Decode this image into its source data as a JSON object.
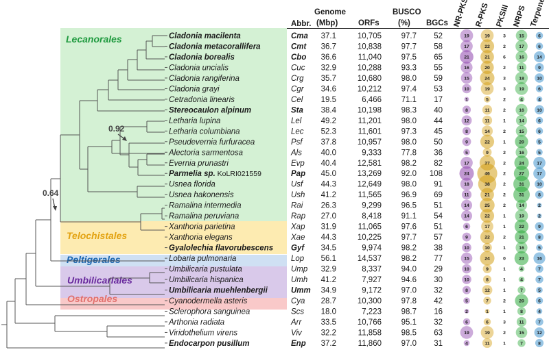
{
  "headers": {
    "abbr": "Abbr.",
    "genome_1": "Genome",
    "genome_2": "(Mbp)",
    "orfs": "ORFs",
    "busco_1": "BUSCO",
    "busco_2": "(%)",
    "bgcs": "BGCs",
    "bgc_types": [
      "NR-PKS",
      "R-PKS",
      "PKSIII",
      "NRPS",
      "Terpene"
    ]
  },
  "colors": {
    "nr_pks": "#8e44ad",
    "r_pks": "#d4a017",
    "pksiii": "#e8731a",
    "nrps": "#2eaa3c",
    "terpene": "#1a7fc4",
    "lecanorales_bg": "#cdeecd",
    "telochistales_bg": "#fde9a8",
    "peltigerales_bg": "#cfe0f3",
    "umbilicariales_bg": "#d9c9ea",
    "ostropales_bg": "#f9c9c9"
  },
  "orders": [
    {
      "name": "Lecanorales",
      "color": "#1f9a3f"
    },
    {
      "name": "Telochistales",
      "color": "#e3a210"
    },
    {
      "name": "Peltigerales",
      "color": "#1a66b0"
    },
    {
      "name": "Umbilicariales",
      "color": "#6a2c9e"
    },
    {
      "name": "Ostropales",
      "color": "#e0706e"
    }
  ],
  "supports": [
    "0.92",
    "0.64"
  ],
  "species": [
    {
      "name": "Cladonia macilenta",
      "bold": true,
      "abbr": "Cma",
      "genome": "37.1",
      "orfs": "10,705",
      "busco": "97.7",
      "bgcs": "52",
      "nr": "19",
      "r": "19",
      "p3": "3",
      "nrps": "15",
      "ter": "6"
    },
    {
      "name": "Cladonia metacorallifera",
      "bold": true,
      "abbr": "Cmt",
      "genome": "36.7",
      "orfs": "10,838",
      "busco": "97.7",
      "bgcs": "58",
      "nr": "17",
      "r": "22",
      "p3": "2",
      "nrps": "17",
      "ter": "6"
    },
    {
      "name": "Cladonia borealis",
      "bold": true,
      "abbr": "Cbo",
      "genome": "36.6",
      "orfs": "11,040",
      "busco": "97.5",
      "bgcs": "65",
      "nr": "21",
      "r": "21",
      "p3": "6",
      "nrps": "16",
      "ter": "14"
    },
    {
      "name": "Cladonia uncialis",
      "bold": false,
      "abbr": "Cuc",
      "genome": "32.9",
      "orfs": "10,288",
      "busco": "93.3",
      "bgcs": "55",
      "nr": "16",
      "r": "20",
      "p3": "2",
      "nrps": "11",
      "ter": "9"
    },
    {
      "name": "Cladonia rangiferina",
      "bold": false,
      "abbr": "Crg",
      "genome": "35.7",
      "orfs": "10,680",
      "busco": "98.0",
      "bgcs": "59",
      "nr": "15",
      "r": "24",
      "p3": "3",
      "nrps": "18",
      "ter": "10"
    },
    {
      "name": "Cladonia grayi",
      "bold": false,
      "abbr": "Cgr",
      "genome": "34.6",
      "orfs": "10,212",
      "busco": "97.4",
      "bgcs": "53",
      "nr": "10",
      "r": "19",
      "p3": "3",
      "nrps": "19",
      "ter": "6"
    },
    {
      "name": "Cetradonia linearis",
      "bold": false,
      "abbr": "Cel",
      "genome": "19.5",
      "orfs": "6,466",
      "busco": "71.1",
      "bgcs": "17",
      "nr": "1",
      "r": "5",
      "p3": "2",
      "nrps": "4",
      "ter": "4"
    },
    {
      "name": "Stereocaulon alpinum",
      "bold": true,
      "abbr": "Sta",
      "genome": "38.4",
      "orfs": "10,198",
      "busco": "98.3",
      "bgcs": "40",
      "nr": "8",
      "r": "11",
      "p3": "2",
      "nrps": "16",
      "ter": "10"
    },
    {
      "name": "Letharia lupina",
      "bold": false,
      "abbr": "Lel",
      "genome": "49.2",
      "orfs": "11,201",
      "busco": "98.0",
      "bgcs": "44",
      "nr": "12",
      "r": "11",
      "p3": "1",
      "nrps": "14",
      "ter": "6"
    },
    {
      "name": "Letharia columbiana",
      "bold": false,
      "abbr": "Lec",
      "genome": "52.3",
      "orfs": "11,601",
      "busco": "97.3",
      "bgcs": "45",
      "nr": "8",
      "r": "14",
      "p3": "2",
      "nrps": "15",
      "ter": "6"
    },
    {
      "name": "Pseudevernia furfuracea",
      "bold": false,
      "abbr": "Psf",
      "genome": "37.8",
      "orfs": "10,957",
      "busco": "98.0",
      "bgcs": "50",
      "nr": "9",
      "r": "22",
      "p3": "1",
      "nrps": "20",
      "ter": "5"
    },
    {
      "name": "Alectoria sarmentosa",
      "bold": false,
      "abbr": "Als",
      "genome": "40.0",
      "orfs": "9,333",
      "busco": "77.8",
      "bgcs": "36",
      "nr": "5",
      "r": "9",
      "p3": "2",
      "nrps": "16",
      "ter": "5"
    },
    {
      "name": "Evernia prunastri",
      "bold": false,
      "abbr": "Evp",
      "genome": "40.4",
      "orfs": "12,581",
      "busco": "98.2",
      "bgcs": "82",
      "nr": "17",
      "r": "27",
      "p3": "2",
      "nrps": "24",
      "ter": "17"
    },
    {
      "name": "Parmelia sp.",
      "extra": "KoLRI021559",
      "bold": true,
      "abbr": "Pap",
      "genome": "45.0",
      "orfs": "13,269",
      "busco": "92.0",
      "bgcs": "108",
      "nr": "24",
      "r": "46",
      "p3": "2",
      "nrps": "27",
      "ter": "17"
    },
    {
      "name": "Usnea florida",
      "bold": false,
      "abbr": "Usf",
      "genome": "44.3",
      "orfs": "12,649",
      "busco": "98.0",
      "bgcs": "91",
      "nr": "18",
      "r": "38",
      "p3": "2",
      "nrps": "31",
      "ter": "10"
    },
    {
      "name": "Usnea hakonensis",
      "bold": false,
      "abbr": "Ush",
      "genome": "41.2",
      "orfs": "11,565",
      "busco": "96.9",
      "bgcs": "69",
      "nr": "11",
      "r": "21",
      "p3": "2",
      "nrps": "31",
      "ter": "8"
    },
    {
      "name": "Ramalina intermedia",
      "bold": false,
      "abbr": "Rai",
      "genome": "26.3",
      "orfs": "9,299",
      "busco": "96.5",
      "bgcs": "51",
      "nr": "14",
      "r": "25",
      "p3": "2",
      "nrps": "14",
      "ter": "2"
    },
    {
      "name": "Ramalina peruviana",
      "bold": false,
      "abbr": "Rap",
      "genome": "27.0",
      "orfs": "8,418",
      "busco": "91.1",
      "bgcs": "54",
      "nr": "14",
      "r": "22",
      "p3": "1",
      "nrps": "19",
      "ter": "2"
    },
    {
      "name": "Xanthoria parietina",
      "bold": false,
      "abbr": "Xap",
      "genome": "31.9",
      "orfs": "11,065",
      "busco": "97.6",
      "bgcs": "51",
      "nr": "6",
      "r": "17",
      "p3": "1",
      "nrps": "22",
      "ter": "9"
    },
    {
      "name": "Xanthoria elegans",
      "bold": false,
      "abbr": "Xae",
      "genome": "44.3",
      "orfs": "10,225",
      "busco": "97.7",
      "bgcs": "57",
      "nr": "9",
      "r": "22",
      "p3": "2",
      "nrps": "21",
      "ter": "8"
    },
    {
      "name": "Gyalolechia flavorubescens",
      "bold": true,
      "abbr": "Gyf",
      "genome": "34.5",
      "orfs": "9,974",
      "busco": "98.2",
      "bgcs": "38",
      "nr": "10",
      "r": "10",
      "p3": "1",
      "nrps": "16",
      "ter": "5"
    },
    {
      "name": "Lobaria pulmonaria",
      "bold": false,
      "abbr": "Lop",
      "genome": "56.1",
      "orfs": "14,537",
      "busco": "98.2",
      "bgcs": "77",
      "nr": "15",
      "r": "24",
      "p3": "0",
      "nrps": "23",
      "ter": "16"
    },
    {
      "name": "Umbilicaria pustulata",
      "bold": false,
      "abbr": "Ump",
      "genome": "32.9",
      "orfs": "8,337",
      "busco": "94.0",
      "bgcs": "29",
      "nr": "10",
      "r": "9",
      "p3": "1",
      "nrps": "4",
      "ter": "7"
    },
    {
      "name": "Umbilicaria hispanica",
      "bold": false,
      "abbr": "Umh",
      "genome": "41.2",
      "orfs": "7,927",
      "busco": "94.6",
      "bgcs": "30",
      "nr": "10",
      "r": "8",
      "p3": "1",
      "nrps": "4",
      "ter": "7"
    },
    {
      "name": "Umbilicaria muehlenbergii",
      "bold": true,
      "abbr": "Umm",
      "genome": "34.9",
      "orfs": "9,172",
      "busco": "97.0",
      "bgcs": "32",
      "nr": "8",
      "r": "12",
      "p3": "1",
      "nrps": "7",
      "ter": "5"
    },
    {
      "name": "Cyanodermella asteris",
      "bold": false,
      "abbr": "Cya",
      "genome": "28.7",
      "orfs": "10,300",
      "busco": "97.8",
      "bgcs": "42",
      "nr": "5",
      "r": "7",
      "p3": "2",
      "nrps": "20",
      "ter": "6"
    },
    {
      "name": "Sclerophora sanguinea",
      "bold": false,
      "abbr": "Scs",
      "genome": "18.0",
      "orfs": "7,223",
      "busco": "98.7",
      "bgcs": "16",
      "nr": "2",
      "r": "1",
      "p3": "1",
      "nrps": "8",
      "ter": "4"
    },
    {
      "name": "Arthonia radiata",
      "bold": false,
      "abbr": "Arr",
      "genome": "33.5",
      "orfs": "10,766",
      "busco": "95.1",
      "bgcs": "32",
      "nr": "6",
      "r": "6",
      "p3": "3",
      "nrps": "11",
      "ter": "7"
    },
    {
      "name": "Viridothelium virens",
      "bold": false,
      "abbr": "Viv",
      "genome": "32.2",
      "orfs": "11,858",
      "busco": "98.5",
      "bgcs": "63",
      "nr": "19",
      "r": "19",
      "p3": "2",
      "nrps": "15",
      "ter": "12"
    },
    {
      "name": "Endocarpon pusillum",
      "bold": true,
      "abbr": "Enp",
      "genome": "37.2",
      "orfs": "11,860",
      "busco": "97.0",
      "bgcs": "31",
      "nr": "4",
      "r": "11",
      "p3": "1",
      "nrps": "7",
      "ter": "8"
    }
  ]
}
